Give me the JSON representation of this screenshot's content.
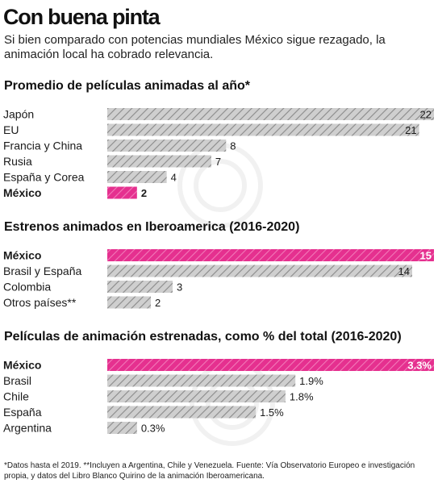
{
  "title": "Con buena pinta",
  "subtitle": "Si bien comparado con potencias mundiales México sigue rezagado, la animación local ha cobrado relevancia.",
  "footnote": "*Datos hasta el 2019. **Incluyen a Argentina, Chile y Venezuela. Fuente: Vía Observatorio Europeo e investigación propia, y datos del Libro Blanco Quirino de la animación Iberoamericana.",
  "colors": {
    "highlight": "#e5308f",
    "gray_bar": "#cfcfcf",
    "hatch": "#8a8a8a",
    "text": "#1a1a1a"
  },
  "chart_data": [
    {
      "type": "bar",
      "orientation": "horizontal",
      "title": "Promedio de películas animadas al año*",
      "categories": [
        "Japón",
        "EU",
        "Francia y China",
        "Rusia",
        "España y Corea",
        "México"
      ],
      "values": [
        22,
        21,
        8,
        7,
        4,
        2
      ],
      "labels": [
        "22",
        "21",
        "8",
        "7",
        "4",
        "2"
      ],
      "highlight": "México",
      "xlim": [
        0,
        22
      ]
    },
    {
      "type": "bar",
      "orientation": "horizontal",
      "title": "Estrenos animados en Iberoamerica (2016-2020)",
      "categories": [
        "México",
        "Brasil y España",
        "Colombia",
        "Otros países**"
      ],
      "values": [
        15,
        14,
        3,
        2
      ],
      "labels": [
        "15",
        "14",
        "3",
        "2"
      ],
      "highlight": "México",
      "xlim": [
        0,
        15
      ]
    },
    {
      "type": "bar",
      "orientation": "horizontal",
      "title": "Películas de animación estrenadas, como % del total  (2016-2020)",
      "categories": [
        "México",
        "Brasil",
        "Chile",
        "España",
        "Argentina"
      ],
      "values": [
        3.3,
        1.9,
        1.8,
        1.5,
        0.3
      ],
      "labels": [
        "3.3%",
        "1.9%",
        "1.8%",
        "1.5%",
        "0.3%"
      ],
      "highlight": "México",
      "xlim": [
        0,
        3.3
      ]
    }
  ]
}
